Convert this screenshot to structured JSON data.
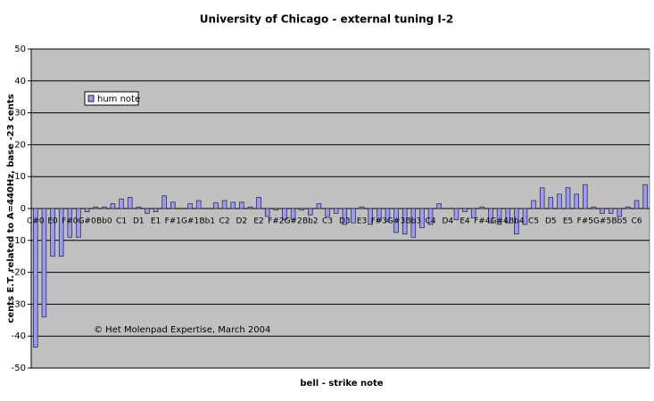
{
  "chart_data": {
    "type": "bar",
    "title": "University of Chicago - external tuning I-2",
    "y_label": "cents E.T. related to A=440Hz, base -23 cents",
    "x_label": "bell - strike note",
    "annotation": "© Het Molenpad Expertise, March 2004",
    "categories": [
      "C#0",
      null,
      "E0",
      null,
      "F#0",
      null,
      "G#0",
      null,
      "Bb0",
      null,
      "C1",
      null,
      "D1",
      null,
      "E1",
      null,
      "F#1",
      null,
      "G#1",
      null,
      "Bb1",
      null,
      "C2",
      null,
      "D2",
      null,
      "E2",
      null,
      "F#2",
      null,
      "G#2",
      null,
      "Bb2",
      null,
      "C3",
      null,
      "D3",
      null,
      "E3",
      null,
      "F#3",
      null,
      "G#3",
      null,
      "Bb3",
      null,
      "C4",
      null,
      "D4",
      null,
      "E4",
      null,
      "F#4",
      null,
      "G#4",
      null,
      "Bb4",
      null,
      "C5",
      null,
      "D5",
      null,
      "E5",
      null,
      "F#5",
      null,
      "G#5",
      null,
      "Bb5",
      null,
      "C6",
      null
    ],
    "series": [
      {
        "name": "hum note",
        "color": "#9999ff",
        "values": [
          -43.5,
          -34,
          -15,
          -15,
          -9,
          -9,
          -1,
          0.5,
          0.5,
          1.5,
          3,
          3.5,
          0.5,
          -1.5,
          -1,
          4,
          2,
          0,
          1.5,
          2.5,
          0,
          1.8,
          2.5,
          2,
          2,
          0.5,
          3.5,
          -2.5,
          -0.5,
          -3.5,
          -3.5,
          -0.5,
          -2,
          1.5,
          -2.5,
          -1.5,
          -5,
          -4.5,
          0.5,
          -5,
          -4,
          -4,
          -7.5,
          -8,
          -9,
          -6,
          -5,
          1.5,
          0,
          -3.5,
          -1,
          -3,
          0.5,
          -4.5,
          -5,
          -4.5,
          -8,
          -5,
          2.5,
          6.5,
          3.5,
          4.5,
          6.5,
          4.5,
          7.5,
          0.5,
          -1.5,
          -1.5,
          -2.5,
          0.5,
          2.5,
          7.5
        ]
      }
    ],
    "ylim": [
      -50,
      50
    ],
    "yticks": [
      -50,
      -40,
      -30,
      -20,
      -10,
      0,
      10,
      20,
      30,
      40,
      50
    ],
    "grid": true
  }
}
